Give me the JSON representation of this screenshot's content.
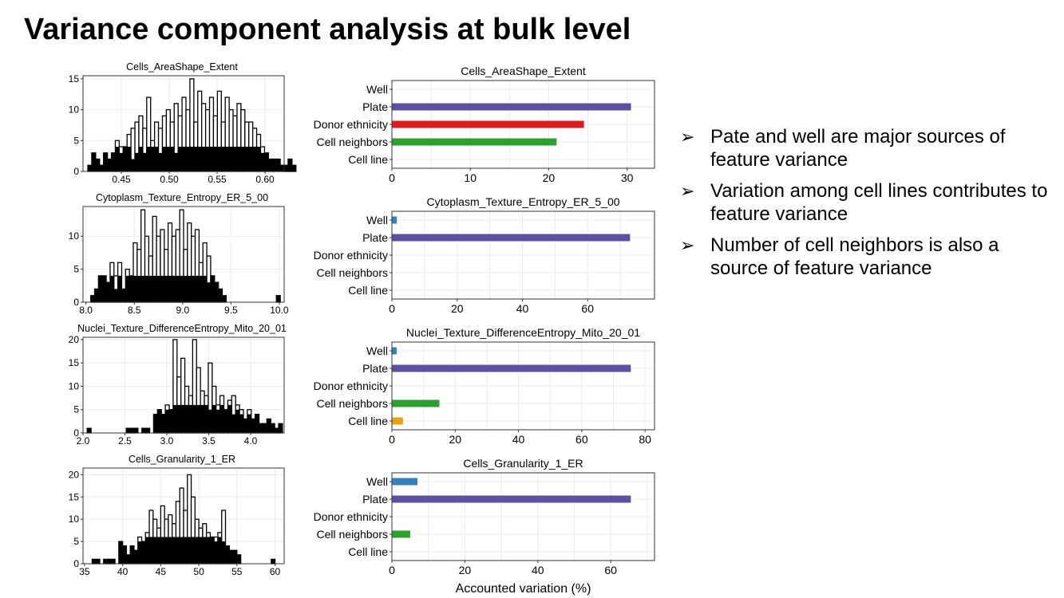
{
  "slide": {
    "title": "Variance component analysis at bulk level",
    "bullets": [
      "Pate and well are major sources of feature variance",
      "Variation among cell lines contributes to feature variance",
      "Number of cell neighbors is also a source of feature variance"
    ],
    "bullet_marker": "➢"
  },
  "colors": {
    "Well": "#3182bd",
    "Plate": "#5e4fa2",
    "Donor ethnicity": "#e31a1c",
    "Cell neighbors": "#2ca02c",
    "Cell line": "#e6a40f",
    "histogram_fill": "#000000",
    "panel_grid": "#ebebeb"
  },
  "chart_data": [
    {
      "type": "bar",
      "subtype": "histogram-overlay",
      "title": "Cells_AreaShape_Extent",
      "xlim": [
        0.41,
        0.62
      ],
      "ylim": [
        0,
        15.5
      ],
      "xticks": [
        0.45,
        0.5,
        0.55,
        0.6
      ],
      "xtick_labels": [
        "0.45",
        "0.50",
        "0.55",
        "0.60"
      ],
      "yticks": [
        0,
        5,
        10,
        15
      ],
      "x_start": 0.415,
      "binwidth": 0.0041,
      "series": [
        {
          "style": "outline",
          "values": [
            1,
            3,
            2,
            1,
            3,
            2,
            3,
            5,
            4,
            4,
            6,
            7,
            8,
            9,
            7,
            12,
            5,
            8,
            7,
            9,
            10,
            8,
            11,
            9,
            12,
            10,
            15,
            8,
            13,
            11,
            10,
            12,
            9,
            13,
            8,
            12,
            10,
            9,
            11,
            10,
            8,
            8,
            7,
            6,
            4,
            3,
            2,
            2,
            2,
            1,
            1,
            2,
            1,
            0
          ]
        },
        {
          "style": "filled",
          "values": [
            1,
            3,
            2,
            1,
            3,
            2,
            3,
            4,
            3,
            4,
            4,
            2,
            3,
            4,
            3,
            4,
            4,
            4,
            3,
            4,
            4,
            4,
            3,
            4,
            4,
            4,
            4,
            4,
            4,
            4,
            4,
            4,
            4,
            4,
            4,
            4,
            4,
            4,
            4,
            4,
            4,
            4,
            4,
            4,
            3,
            3,
            2,
            2,
            2,
            1,
            1,
            2,
            1,
            0
          ]
        }
      ]
    },
    {
      "type": "bar",
      "subtype": "histogram-overlay",
      "title": "Cytoplasm_Texture_Entropy_ER_5_00",
      "xlim": [
        7.97,
        10.05
      ],
      "ylim": [
        0,
        14.5
      ],
      "xticks": [
        8.0,
        8.5,
        9.0,
        9.5,
        10.0
      ],
      "xtick_labels": [
        "8.0",
        "8.5",
        "9.0",
        "9.5",
        "10.0"
      ],
      "yticks": [
        0,
        5,
        10
      ],
      "x_start": 8.05,
      "binwidth": 0.04,
      "series": [
        {
          "style": "outline",
          "values": [
            1,
            2,
            4,
            4,
            3,
            6,
            4,
            6,
            2,
            5,
            4,
            9,
            8,
            14,
            10,
            7,
            13,
            10,
            11,
            8,
            12,
            10,
            11,
            14,
            8,
            12,
            10,
            11,
            6,
            9,
            7,
            4,
            3,
            2,
            1,
            0,
            0,
            0,
            0,
            0,
            0,
            0,
            0,
            0,
            0,
            0,
            0,
            0,
            1
          ]
        },
        {
          "style": "filled",
          "values": [
            1,
            2,
            4,
            4,
            3,
            4,
            2,
            4,
            2,
            4,
            4,
            4,
            4,
            4,
            4,
            4,
            4,
            4,
            4,
            4,
            4,
            4,
            4,
            4,
            4,
            4,
            4,
            4,
            4,
            4,
            3,
            4,
            3,
            2,
            1,
            0,
            0,
            0,
            0,
            0,
            0,
            0,
            0,
            0,
            0,
            0,
            0,
            0,
            1
          ]
        }
      ]
    },
    {
      "type": "bar",
      "subtype": "histogram-overlay",
      "title": "Nuclei_Texture_DifferenceEntropy_Mito_20_01",
      "xlim": [
        2.0,
        4.4
      ],
      "ylim": [
        0,
        20.5
      ],
      "xticks": [
        2.0,
        2.5,
        3.0,
        3.5,
        4.0
      ],
      "xtick_labels": [
        "2.0",
        "2.5",
        "3.0",
        "3.5",
        "4.0"
      ],
      "yticks": [
        0,
        5,
        10,
        15,
        20
      ],
      "x_start": 2.05,
      "binwidth": 0.0466,
      "series": [
        {
          "style": "outline",
          "values": [
            1,
            0,
            0,
            0,
            0,
            0,
            0,
            0,
            0,
            0,
            1,
            1,
            1,
            0,
            1,
            1,
            0,
            4,
            5,
            4,
            6,
            5,
            20,
            12,
            16,
            10,
            8,
            20,
            14,
            9,
            8,
            15,
            10,
            6,
            8,
            5,
            7,
            8,
            6,
            5,
            3,
            5,
            3,
            4,
            2,
            2,
            3,
            2,
            1,
            2
          ]
        },
        {
          "style": "filled",
          "values": [
            1,
            0,
            0,
            0,
            0,
            0,
            0,
            0,
            0,
            0,
            1,
            1,
            1,
            0,
            1,
            1,
            0,
            4,
            5,
            4,
            5,
            5,
            6,
            6,
            6,
            6,
            6,
            6,
            6,
            6,
            6,
            5,
            6,
            5,
            6,
            5,
            6,
            4,
            5,
            4,
            3,
            4,
            3,
            4,
            2,
            2,
            3,
            2,
            1,
            2
          ]
        }
      ]
    },
    {
      "type": "bar",
      "subtype": "histogram-overlay",
      "title": "Cells_Granularity_1_ER",
      "xlim": [
        34.8,
        61.2
      ],
      "ylim": [
        0,
        21.5
      ],
      "xticks": [
        35,
        40,
        45,
        50,
        55,
        60
      ],
      "xtick_labels": [
        "35",
        "40",
        "45",
        "50",
        "55",
        "60"
      ],
      "yticks": [
        0,
        5,
        10,
        15,
        20
      ],
      "x_start": 36.0,
      "binwidth": 0.5,
      "series": [
        {
          "style": "outline",
          "values": [
            1,
            1,
            0,
            1,
            1,
            1,
            0,
            5,
            4,
            2,
            4,
            3,
            6,
            5,
            7,
            12,
            10,
            8,
            13,
            10,
            11,
            9,
            14,
            17,
            12,
            20,
            15,
            10,
            8,
            9,
            7,
            6,
            6,
            7,
            12,
            4,
            3,
            3,
            2,
            0,
            0,
            0,
            0,
            0,
            0,
            0,
            0,
            1
          ]
        },
        {
          "style": "filled",
          "values": [
            1,
            1,
            0,
            1,
            1,
            1,
            0,
            5,
            4,
            2,
            4,
            3,
            5,
            5,
            6,
            6,
            6,
            6,
            6,
            6,
            6,
            6,
            6,
            6,
            6,
            6,
            6,
            6,
            6,
            6,
            6,
            6,
            5,
            6,
            5,
            4,
            3,
            3,
            2,
            0,
            0,
            0,
            0,
            0,
            0,
            0,
            0,
            1
          ]
        }
      ]
    },
    {
      "type": "bar",
      "orientation": "horizontal",
      "title": "Cells_AreaShape_Extent",
      "categories": [
        "Well",
        "Plate",
        "Donor ethnicity",
        "Cell neighbors",
        "Cell line"
      ],
      "values": [
        0,
        30.5,
        24.5,
        21,
        0
      ],
      "xlim": [
        0,
        33.5
      ],
      "xticks": [
        0,
        10,
        20,
        30
      ]
    },
    {
      "type": "bar",
      "orientation": "horizontal",
      "title": "Cytoplasm_Texture_Entropy_ER_5_00",
      "categories": [
        "Well",
        "Plate",
        "Donor ethnicity",
        "Cell neighbors",
        "Cell line"
      ],
      "values": [
        1.5,
        73,
        0,
        0,
        0
      ],
      "xlim": [
        0,
        80.5
      ],
      "xticks": [
        0,
        20,
        40,
        60
      ]
    },
    {
      "type": "bar",
      "orientation": "horizontal",
      "title": "Nuclei_Texture_DifferenceEntropy_Mito_20_01",
      "categories": [
        "Well",
        "Plate",
        "Donor ethnicity",
        "Cell neighbors",
        "Cell line"
      ],
      "values": [
        1.5,
        75.5,
        0,
        15,
        3.5
      ],
      "xlim": [
        0,
        83
      ],
      "xticks": [
        0,
        20,
        40,
        60,
        80
      ]
    },
    {
      "type": "bar",
      "orientation": "horizontal",
      "title": "Cells_Granularity_1_ER",
      "categories": [
        "Well",
        "Plate",
        "Donor ethnicity",
        "Cell neighbors",
        "Cell line"
      ],
      "values": [
        7,
        65.5,
        0,
        5,
        0
      ],
      "xlim": [
        0,
        72
      ],
      "xticks": [
        0,
        20,
        40,
        60
      ],
      "xlabel": "Accounted variation (%)"
    }
  ]
}
